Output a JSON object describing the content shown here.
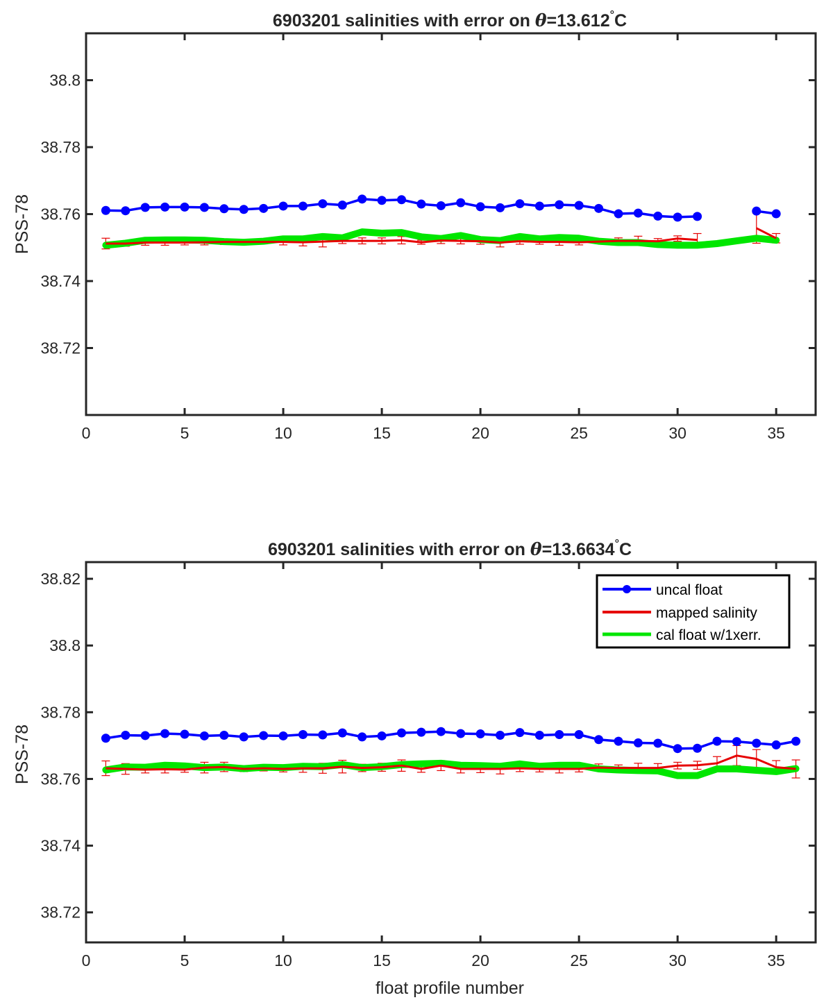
{
  "chart_data": [
    {
      "type": "line",
      "title_prefix": "6903201 salinities with error on ",
      "title_symbol": "θ",
      "title_value": "=13.612",
      "title_degree": "°",
      "title_unit": "C",
      "xlabel": "",
      "ylabel": "PSS-78",
      "xlim": [
        0,
        37
      ],
      "ylim": [
        38.7,
        38.814
      ],
      "xticks": [
        0,
        5,
        10,
        15,
        20,
        25,
        30,
        35
      ],
      "yticks": [
        38.72,
        38.74,
        38.76,
        38.78,
        38.8
      ],
      "ytick_labels": [
        "38.72",
        "38.74",
        "38.76",
        "38.78",
        "38.8"
      ],
      "grid": false,
      "legend": null,
      "series": [
        {
          "name": "uncal float",
          "color": "#0000ff",
          "marker": "circle",
          "x": [
            1,
            2,
            3,
            4,
            5,
            6,
            7,
            8,
            9,
            10,
            11,
            12,
            13,
            14,
            15,
            16,
            17,
            18,
            19,
            20,
            21,
            22,
            23,
            24,
            25,
            26,
            27,
            28,
            29,
            30,
            31,
            null,
            34,
            35
          ],
          "y": [
            38.7611,
            38.761,
            38.762,
            38.7621,
            38.7621,
            38.762,
            38.7616,
            38.7614,
            38.7617,
            38.7624,
            38.7624,
            38.7631,
            38.7627,
            38.7645,
            38.7641,
            38.7643,
            38.763,
            38.7625,
            38.7634,
            38.7622,
            38.7619,
            38.7631,
            38.7624,
            38.7628,
            38.7626,
            38.7617,
            38.7601,
            38.7603,
            38.7594,
            38.7591,
            38.7593,
            null,
            38.7609,
            38.7601
          ]
        },
        {
          "name": "mapped salinity",
          "color": "#e60000",
          "x": [
            1,
            2,
            3,
            4,
            5,
            6,
            7,
            8,
            9,
            10,
            11,
            12,
            13,
            14,
            15,
            16,
            17,
            18,
            19,
            20,
            21,
            22,
            23,
            24,
            25,
            26,
            27,
            28,
            29,
            30,
            31,
            32,
            33,
            34,
            35
          ],
          "y": [
            38.7512,
            38.7512,
            38.7515,
            38.7515,
            38.7515,
            38.7516,
            38.7517,
            38.7517,
            38.7517,
            38.7517,
            38.7516,
            38.7518,
            38.752,
            38.752,
            38.752,
            38.7522,
            38.7516,
            38.7521,
            38.752,
            38.7519,
            38.7515,
            38.7519,
            38.7517,
            38.7517,
            38.7516,
            38.7518,
            38.752,
            38.752,
            38.7519,
            38.7527,
            38.7523,
            null,
            null,
            38.7558,
            38.7528
          ],
          "err": [
            0.0016,
            0.0008,
            0.0008,
            0.0008,
            0.0007,
            0.0008,
            0.0008,
            0.0007,
            0.0006,
            0.0009,
            0.0011,
            0.0016,
            0.0008,
            0.0009,
            0.0009,
            0.0011,
            0.0006,
            0.0009,
            0.0009,
            0.0009,
            0.0013,
            0.0009,
            0.0007,
            0.001,
            0.0008,
            0.0006,
            0.0009,
            0.0014,
            0.0008,
            0.0008,
            0.0019,
            null,
            null,
            0.0045,
            0.0014
          ]
        },
        {
          "name": "cal float w/1xerr.",
          "color": "#00e600",
          "x": [
            1,
            2,
            3,
            4,
            5,
            6,
            7,
            8,
            9,
            10,
            11,
            12,
            13,
            14,
            15,
            16,
            17,
            18,
            19,
            20,
            21,
            22,
            23,
            24,
            25,
            26,
            27,
            28,
            29,
            30,
            31,
            32,
            33,
            34,
            35
          ],
          "y": [
            38.7507,
            38.7513,
            38.7522,
            38.7523,
            38.7523,
            38.7522,
            38.7518,
            38.7516,
            38.7519,
            38.7526,
            38.7526,
            38.7533,
            38.7529,
            38.7547,
            38.7543,
            38.7545,
            38.7532,
            38.7527,
            38.7536,
            38.7524,
            38.7521,
            38.7533,
            38.7526,
            38.753,
            38.7528,
            38.7519,
            38.7515,
            38.7515,
            38.7509,
            38.7507,
            38.7507,
            38.7512,
            38.752,
            38.7528,
            38.7522
          ]
        }
      ]
    },
    {
      "type": "line",
      "title_prefix": "6903201 salinities with error on ",
      "title_symbol": "θ",
      "title_value": "=13.6634",
      "title_degree": "°",
      "title_unit": "C",
      "xlabel": "float profile number",
      "ylabel": "PSS-78",
      "xlim": [
        0,
        37
      ],
      "ylim": [
        38.711,
        38.825
      ],
      "xticks": [
        0,
        5,
        10,
        15,
        20,
        25,
        30,
        35
      ],
      "yticks": [
        38.72,
        38.74,
        38.76,
        38.78,
        38.8,
        38.82
      ],
      "ytick_labels": [
        "38.72",
        "38.74",
        "38.76",
        "38.78",
        "38.8",
        "38.82"
      ],
      "grid": false,
      "legend": "top-right",
      "series": [
        {
          "name": "uncal float",
          "color": "#0000ff",
          "marker": "circle",
          "x": [
            1,
            2,
            3,
            4,
            5,
            6,
            7,
            8,
            9,
            10,
            11,
            12,
            13,
            14,
            15,
            16,
            17,
            18,
            19,
            20,
            21,
            22,
            23,
            24,
            25,
            26,
            27,
            28,
            29,
            30,
            31,
            32,
            33,
            34,
            35,
            36
          ],
          "y": [
            38.7722,
            38.7731,
            38.773,
            38.7736,
            38.7734,
            38.7729,
            38.7731,
            38.7726,
            38.773,
            38.7729,
            38.7733,
            38.7732,
            38.7738,
            38.7726,
            38.7729,
            38.7738,
            38.774,
            38.7742,
            38.7736,
            38.7735,
            38.7731,
            38.7739,
            38.7731,
            38.7733,
            38.7733,
            38.7718,
            38.7713,
            38.7708,
            38.7707,
            38.7691,
            38.7692,
            38.7713,
            38.7712,
            38.7707,
            38.7702,
            38.7713
          ]
        },
        {
          "name": "mapped salinity",
          "color": "#e60000",
          "x": [
            1,
            2,
            3,
            4,
            5,
            6,
            7,
            8,
            9,
            10,
            11,
            12,
            13,
            14,
            15,
            16,
            17,
            18,
            19,
            20,
            21,
            22,
            23,
            24,
            25,
            26,
            27,
            28,
            29,
            30,
            31,
            32,
            33,
            34,
            35,
            36
          ],
          "y": [
            38.7632,
            38.763,
            38.7628,
            38.7629,
            38.7628,
            38.7634,
            38.7636,
            38.763,
            38.7632,
            38.763,
            38.7632,
            38.7632,
            38.7637,
            38.7633,
            38.7635,
            38.764,
            38.763,
            38.764,
            38.763,
            38.763,
            38.763,
            38.7632,
            38.763,
            38.763,
            38.763,
            38.7634,
            38.7633,
            38.7633,
            38.7633,
            38.764,
            38.7641,
            38.7647,
            38.767,
            38.766,
            38.7635,
            38.763
          ],
          "err": [
            0.0022,
            0.0016,
            0.001,
            0.0011,
            0.0008,
            0.0016,
            0.0014,
            0.0008,
            0.0008,
            0.0009,
            0.0012,
            0.0015,
            0.0019,
            0.0011,
            0.0012,
            0.0017,
            0.001,
            0.0015,
            0.0012,
            0.0011,
            0.0015,
            0.001,
            0.0009,
            0.0012,
            0.0009,
            0.0011,
            0.0009,
            0.0014,
            0.0013,
            0.001,
            0.0012,
            0.002,
            0.003,
            0.0028,
            0.002,
            0.0027
          ]
        },
        {
          "name": "cal float w/1xerr.",
          "color": "#00e600",
          "x": [
            1,
            2,
            3,
            4,
            5,
            6,
            7,
            8,
            9,
            10,
            11,
            12,
            13,
            14,
            15,
            16,
            17,
            18,
            19,
            20,
            21,
            22,
            23,
            24,
            25,
            26,
            27,
            28,
            29,
            30,
            31,
            32,
            33,
            34,
            35,
            36
          ],
          "y": [
            38.7627,
            38.7636,
            38.7635,
            38.7641,
            38.7639,
            38.7634,
            38.7636,
            38.7631,
            38.7635,
            38.7634,
            38.7638,
            38.7637,
            38.7643,
            38.7634,
            38.7637,
            38.7643,
            38.7645,
            38.7647,
            38.7641,
            38.764,
            38.7638,
            38.7645,
            38.7638,
            38.7641,
            38.7641,
            38.763,
            38.7627,
            38.7625,
            38.7624,
            38.761,
            38.761,
            38.763,
            38.763,
            38.7626,
            38.7622,
            38.7631
          ]
        }
      ]
    }
  ]
}
